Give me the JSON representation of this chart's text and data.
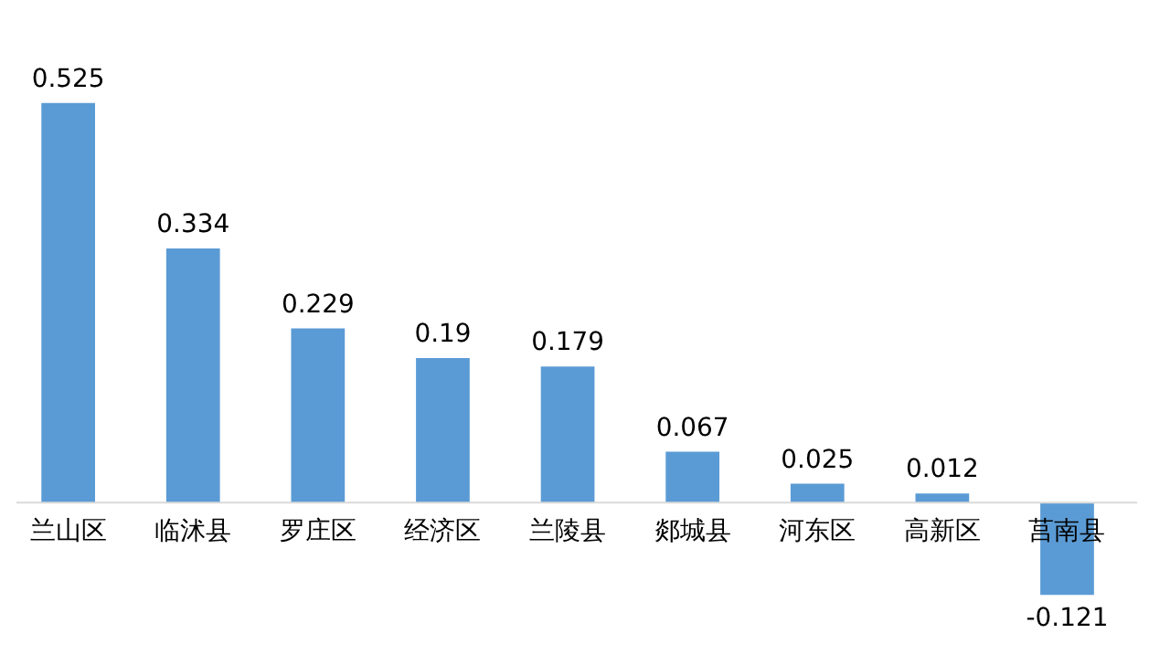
{
  "chart_data": {
    "type": "bar",
    "categories": [
      "兰山区",
      "临沭县",
      "罗庄区",
      "经济区",
      "兰陵县",
      "郯城县",
      "河东区",
      "高新区",
      "莒南县"
    ],
    "values": [
      0.525,
      0.334,
      0.229,
      0.19,
      0.179,
      0.067,
      0.025,
      0.012,
      -0.121
    ],
    "color": "#5b9bd5",
    "data_labels": true
  }
}
